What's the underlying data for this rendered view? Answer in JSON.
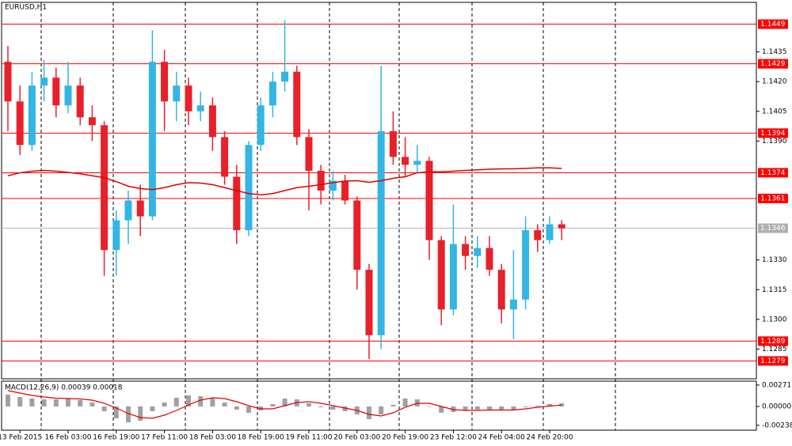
{
  "chart_data": [
    {
      "type": "candlestick",
      "title": "EURUSD,H1",
      "categories": [
        null,
        "13 Feb 2015",
        null,
        null,
        null,
        "16 Feb 03:00",
        null,
        null,
        null,
        "16 Feb 19:00",
        null,
        null,
        null,
        "17 Feb 11:00",
        null,
        null,
        null,
        "18 Feb 03:00",
        null,
        null,
        null,
        "18 Feb 19:00",
        null,
        null,
        null,
        "19 Feb 11:00",
        null,
        null,
        null,
        "20 Feb 03:00",
        null,
        null,
        null,
        "20 Feb 19:00",
        null,
        null,
        null,
        "23 Feb 12:00",
        null,
        null,
        null,
        "24 Feb 04:00",
        null,
        null,
        null,
        "24 Feb 20:00",
        null
      ],
      "open": [
        1.143,
        1.141,
        1.1388,
        1.1418,
        1.1422,
        1.1408,
        1.1418,
        1.1402,
        1.1398,
        1.1335,
        1.135,
        1.136,
        1.1352,
        1.143,
        1.141,
        1.1418,
        1.1405,
        1.1408,
        1.1392,
        1.1372,
        1.1345,
        1.1388,
        1.1408,
        1.142,
        1.1425,
        1.1392,
        1.1375,
        1.1365,
        1.137,
        1.136,
        1.1325,
        1.1292,
        1.1395,
        1.1382,
        1.1378,
        1.138,
        1.134,
        1.1305,
        1.1338,
        1.1332,
        1.1336,
        1.1325,
        1.1305,
        1.131,
        1.1345,
        1.134,
        1.1348
      ],
      "high": [
        1.1438,
        1.1418,
        1.1425,
        1.1431,
        1.1427,
        1.143,
        1.1422,
        1.1408,
        1.14,
        1.1355,
        1.1365,
        1.1368,
        1.1446,
        1.1436,
        1.1425,
        1.1422,
        1.1415,
        1.1412,
        1.1395,
        1.1378,
        1.139,
        1.1412,
        1.1425,
        1.1451,
        1.1428,
        1.1396,
        1.1378,
        1.1375,
        1.1373,
        1.1362,
        1.1328,
        1.1428,
        1.1405,
        1.1392,
        1.1388,
        1.1382,
        1.1342,
        1.1358,
        1.1342,
        1.1342,
        1.1342,
        1.1328,
        1.1335,
        1.1352,
        1.1348,
        1.1352,
        1.135
      ],
      "low": [
        1.1395,
        1.1383,
        1.1385,
        1.141,
        1.1402,
        1.1404,
        1.1398,
        1.139,
        1.1322,
        1.1322,
        1.1338,
        1.1342,
        1.135,
        1.1395,
        1.14,
        1.1398,
        1.14,
        1.1385,
        1.1368,
        1.1338,
        1.1342,
        1.1385,
        1.1402,
        1.1415,
        1.1388,
        1.1355,
        1.1358,
        1.136,
        1.1358,
        1.1315,
        1.128,
        1.1285,
        1.1378,
        1.1372,
        1.1374,
        1.133,
        1.1297,
        1.1302,
        1.1325,
        1.1326,
        1.1322,
        1.1298,
        1.129,
        1.1305,
        1.1334,
        1.1338,
        1.134
      ],
      "close": [
        1.141,
        1.1388,
        1.1418,
        1.1422,
        1.1408,
        1.1418,
        1.1402,
        1.1398,
        1.1335,
        1.135,
        1.136,
        1.1352,
        1.143,
        1.141,
        1.1418,
        1.1405,
        1.1408,
        1.1392,
        1.1372,
        1.1345,
        1.1388,
        1.1408,
        1.142,
        1.1425,
        1.1392,
        1.1375,
        1.1365,
        1.137,
        1.136,
        1.1325,
        1.1292,
        1.1395,
        1.1382,
        1.1378,
        1.138,
        1.134,
        1.1305,
        1.1338,
        1.1332,
        1.1336,
        1.1325,
        1.1305,
        1.131,
        1.1345,
        1.134,
        1.1348,
        1.1346
      ],
      "up_color": "#33b5e5",
      "down_color": "#e8202a",
      "moving_average": [
        1.13725,
        1.1374,
        1.13748,
        1.13752,
        1.13748,
        1.13742,
        1.13735,
        1.13725,
        1.13715,
        1.13695,
        1.13672,
        1.1366,
        1.13655,
        1.13665,
        1.1368,
        1.1369,
        1.13688,
        1.1368,
        1.13665,
        1.1365,
        1.13635,
        1.13628,
        1.13635,
        1.1365,
        1.13665,
        1.13672,
        1.1368,
        1.1369,
        1.13698,
        1.137,
        1.13692,
        1.137,
        1.13712,
        1.1372,
        1.1374,
        1.13745,
        1.13745,
        1.13748,
        1.13752,
        1.13755,
        1.13758,
        1.1376,
        1.1376,
        1.13762,
        1.13765,
        1.13765,
        1.13762
      ],
      "moving_average_color": "#e00000",
      "levels": [
        1.1449,
        1.1429,
        1.1394,
        1.1374,
        1.1361,
        1.1289,
        1.1279
      ],
      "level_color": "#ff0000",
      "bid": 1.1346,
      "bid_color": "#b0b0b0",
      "ylim": [
        1.127,
        1.146
      ],
      "yticks": [
        1.1435,
        {
          "value": 1.142,
          "label": "1.1420"
        },
        1.1405,
        {
          "value": 1.139,
          "label": "1.1390"
        },
        {
          "value": 1.133,
          "label": "1.1330"
        },
        1.1315,
        {
          "value": 1.13,
          "label": "1.1300"
        },
        1.1285
      ]
    },
    {
      "type": "macd",
      "title": "MACD(12,26,9) 0.00039 0.00018",
      "histogram": [
        0.0015,
        0.0012,
        0.001,
        0.0009,
        0.0009,
        0.001,
        0.0008,
        0.0005,
        -0.0006,
        -0.0015,
        -0.002,
        -0.0018,
        -0.0006,
        0.0005,
        0.0011,
        0.0014,
        0.0013,
        0.001,
        0.0005,
        -0.0004,
        -0.0008,
        -0.0005,
        0.0003,
        0.001,
        0.0009,
        0.0004,
        -0.0001,
        -0.0004,
        -0.0006,
        -0.001,
        -0.0016,
        -0.001,
        0.0002,
        0.001,
        0.0009,
        0,
        -0.0008,
        -0.0007,
        -0.0005,
        -0.0004,
        -0.0004,
        -0.0005,
        -0.0004,
        -0.0001,
        0.0001,
        0.0003,
        0.00039
      ],
      "signal": [
        0.002,
        0.0017,
        0.0014,
        0.0012,
        0.00105,
        0.001,
        0.00095,
        0.0008,
        0.0004,
        -0.0002,
        -0.0009,
        -0.0014,
        -0.0015,
        -0.0011,
        -0.0005,
        0.0002,
        0.0008,
        0.0011,
        0.001,
        0.0006,
        0.0001,
        -0.0003,
        -0.0003,
        0.0001,
        0.0005,
        0.0006,
        0.0004,
        0.0001,
        -0.0002,
        -0.0005,
        -0.001,
        -0.0012,
        -0.0008,
        -0.0001,
        0.0004,
        0.0004,
        0,
        -0.0004,
        -0.0005,
        -0.0005,
        -0.00045,
        -0.00045,
        -0.00045,
        -0.0003,
        -0.0001,
        5e-05,
        0.00018
      ],
      "histogram_color": "#a0a0a0",
      "signal_color": "#e00000",
      "ylim": [
        -0.0029,
        0.0032
      ],
      "yticks": [
        0.00271,
        {
          "value": 0,
          "label": "0.00000"
        },
        -0.00238
      ]
    }
  ]
}
